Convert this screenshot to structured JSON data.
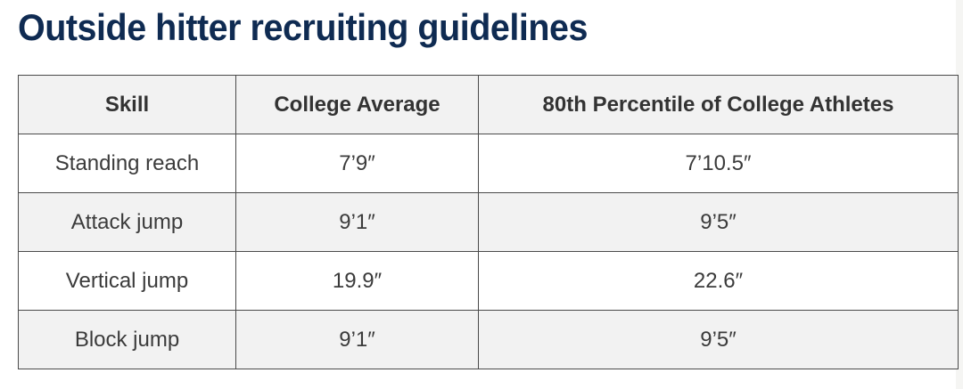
{
  "page": {
    "title": "Outside hitter recruiting guidelines"
  },
  "table": {
    "headers": [
      "Skill",
      "College Average",
      "80th Percentile of College Athletes"
    ],
    "rows": [
      [
        "Standing reach",
        "7’9″",
        "7’10.5″"
      ],
      [
        "Attack jump",
        "9’1″",
        "9’5″"
      ],
      [
        "Vertical jump",
        "19.9″",
        "22.6″"
      ],
      [
        "Block jump",
        "9’1″",
        "9’5″"
      ]
    ]
  },
  "colors": {
    "title": "#0f2b52",
    "header_bg": "#f2f2f2",
    "alt_row_bg": "#f2f2f2",
    "border": "#4a4a4a"
  }
}
